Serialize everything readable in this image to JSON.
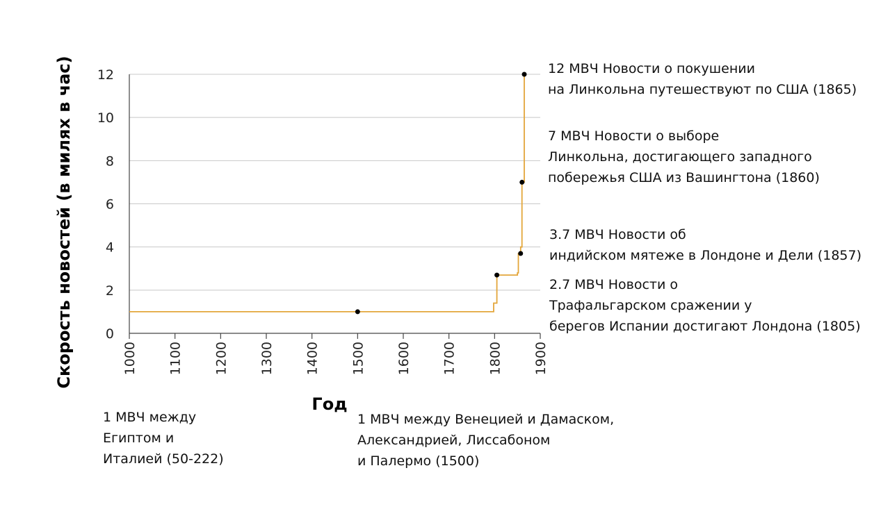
{
  "chart_data": {
    "type": "line",
    "xlabel": "Год",
    "ylabel": "Скорость новостей (в милях в час)",
    "xlim": [
      1000,
      1900
    ],
    "ylim": [
      0,
      12
    ],
    "x_ticks": [
      "1000",
      "1100",
      "1200",
      "1300",
      "1400",
      "1500",
      "1600",
      "1700",
      "1800",
      "1900"
    ],
    "y_ticks": [
      "0",
      "2",
      "4",
      "6",
      "8",
      "10",
      "12"
    ],
    "grid": "horizontal",
    "line_color": "#E3A63A",
    "series": [
      {
        "x": [
          1000,
          1798,
          1798,
          1805,
          1805,
          1850,
          1850,
          1852,
          1852,
          1857,
          1857,
          1860,
          1860,
          1865,
          1865
        ],
        "y": [
          1,
          1,
          1.4,
          1.4,
          2.7,
          2.7,
          2.8,
          2.8,
          3.7,
          3.7,
          4,
          4,
          7,
          7,
          12
        ]
      }
    ],
    "points": [
      {
        "x": 1500,
        "y": 1
      },
      {
        "x": 1805,
        "y": 2.7
      },
      {
        "x": 1857,
        "y": 3.7
      },
      {
        "x": 1860,
        "y": 7
      },
      {
        "x": 1865,
        "y": 12
      }
    ]
  },
  "annotations": {
    "a1865": [
      "12 МВЧ Новости о покушении",
      "на Линкольна путешествуют по США (1865)"
    ],
    "a1860": [
      "7 МВЧ Новости о выборе",
      "Линкольна, достигающего западного",
      "побережья США из Вашингтона (1860)"
    ],
    "a1857": [
      "3.7 МВЧ Новости об",
      "индийском мятеже в Лондоне и Дели (1857)"
    ],
    "a1805": [
      "2.7 МВЧ Новости о",
      "Трафальгарском сражении у",
      "берегов Испании достигают Лондона (1805)"
    ],
    "a50": [
      "1 МВЧ между",
      "Египтом и",
      "Италией (50-222)"
    ],
    "a1500": [
      "1 МВЧ между Венецией и Дамаском,",
      "Александрией, Лиссабоном",
      "и Палермо (1500)"
    ]
  }
}
